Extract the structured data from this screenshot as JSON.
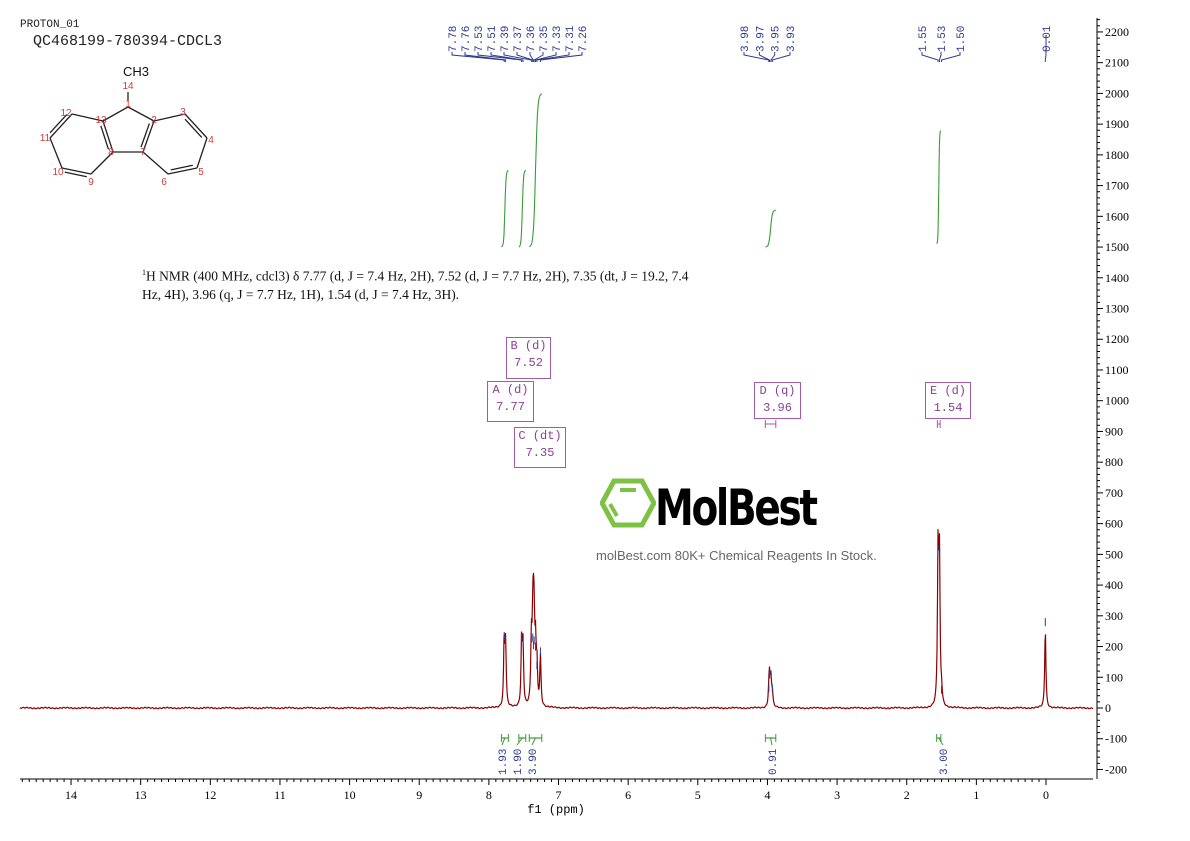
{
  "header": {
    "experiment": "PROTON_01",
    "sample": "QC468199-780394-CDCL3"
  },
  "structure": {
    "methyl_label": "CH3",
    "atom_labels": [
      "1",
      "2",
      "3",
      "4",
      "5",
      "6",
      "7",
      "8",
      "9",
      "10",
      "11",
      "12",
      "13",
      "14"
    ]
  },
  "summary": {
    "sup": "1",
    "text": "H NMR (400 MHz, cdcl3) δ 7.77 (d, J = 7.4 Hz, 2H), 7.52 (d, J = 7.7 Hz, 2H), 7.35 (dt, J = 19.2, 7.4 Hz, 4H), 3.96 (q, J = 7.7 Hz, 1H), 1.54 (d, J = 7.4 Hz, 3H)."
  },
  "watermark": {
    "brand": "MolBest",
    "tagline": "molBest.com  80K+ Chemical Reagents In Stock.",
    "color": "#7dc242"
  },
  "multiplets": [
    {
      "id": "B (d)",
      "value": "7.52"
    },
    {
      "id": "A (d)",
      "value": "7.77"
    },
    {
      "id": "C (dt)",
      "value": "7.35"
    },
    {
      "id": "D (q)",
      "value": "3.96"
    },
    {
      "id": "E (d)",
      "value": "1.54"
    }
  ],
  "chart_data": {
    "type": "line",
    "xlabel": "f1 (ppm)",
    "ylabel": "",
    "xlim": [
      14.7,
      -0.65
    ],
    "ylim": [
      -220,
      2250
    ],
    "x_ticks": [
      "14",
      "13",
      "12",
      "11",
      "10",
      "9",
      "8",
      "7",
      "6",
      "5",
      "4",
      "3",
      "2",
      "1",
      "0"
    ],
    "y_ticks": [
      "-200",
      "-100",
      "0",
      "100",
      "200",
      "300",
      "400",
      "500",
      "600",
      "700",
      "800",
      "900",
      "1000",
      "1100",
      "1200",
      "1300",
      "1400",
      "1500",
      "1600",
      "1700",
      "1800",
      "1900",
      "2000",
      "2100",
      "2200"
    ],
    "colors": {
      "spectrum": "#8b0000",
      "peak_labels": "#2e3a8c",
      "integrals": "#3a9a3a",
      "multiplets": "#a35aa8"
    },
    "peak_label_groups": [
      [
        "7.78",
        "7.76",
        "7.53",
        "7.51",
        "7.39",
        "7.37",
        "7.36",
        "7.35",
        "7.33",
        "7.31",
        "7.26"
      ],
      [
        "3.98",
        "3.97",
        "3.95",
        "3.93"
      ],
      [
        "1.55",
        "1.53",
        "1.50"
      ],
      [
        "0.01"
      ]
    ],
    "peaks": [
      {
        "ppm": 7.78,
        "intensity": 215
      },
      {
        "ppm": 7.76,
        "intensity": 200
      },
      {
        "ppm": 7.53,
        "intensity": 215
      },
      {
        "ppm": 7.51,
        "intensity": 195
      },
      {
        "ppm": 7.39,
        "intensity": 205
      },
      {
        "ppm": 7.37,
        "intensity": 210
      },
      {
        "ppm": 7.36,
        "intensity": 185
      },
      {
        "ppm": 7.35,
        "intensity": 200
      },
      {
        "ppm": 7.33,
        "intensity": 180
      },
      {
        "ppm": 7.31,
        "intensity": 120
      },
      {
        "ppm": 7.26,
        "intensity": 165
      },
      {
        "ppm": 3.98,
        "intensity": 45
      },
      {
        "ppm": 3.97,
        "intensity": 90
      },
      {
        "ppm": 3.95,
        "intensity": 90
      },
      {
        "ppm": 3.93,
        "intensity": 45
      },
      {
        "ppm": 1.55,
        "intensity": 495
      },
      {
        "ppm": 1.53,
        "intensity": 470
      },
      {
        "ppm": 1.5,
        "intensity": 40
      },
      {
        "ppm": 0.01,
        "intensity": 260
      }
    ],
    "integrals": [
      {
        "from": 7.82,
        "to": 7.72,
        "value": "1.93",
        "curve": [
          1500,
          1750
        ]
      },
      {
        "from": 7.57,
        "to": 7.47,
        "value": "1.90",
        "curve": [
          1500,
          1750
        ]
      },
      {
        "from": 7.42,
        "to": 7.24,
        "value": "3.90",
        "curve": [
          1500,
          2000
        ]
      },
      {
        "from": 4.03,
        "to": 3.88,
        "value": "0.91",
        "curve": [
          1500,
          1620
        ]
      },
      {
        "from": 1.57,
        "to": 1.51,
        "value": "3.00",
        "curve": [
          1510,
          1880
        ]
      }
    ]
  }
}
